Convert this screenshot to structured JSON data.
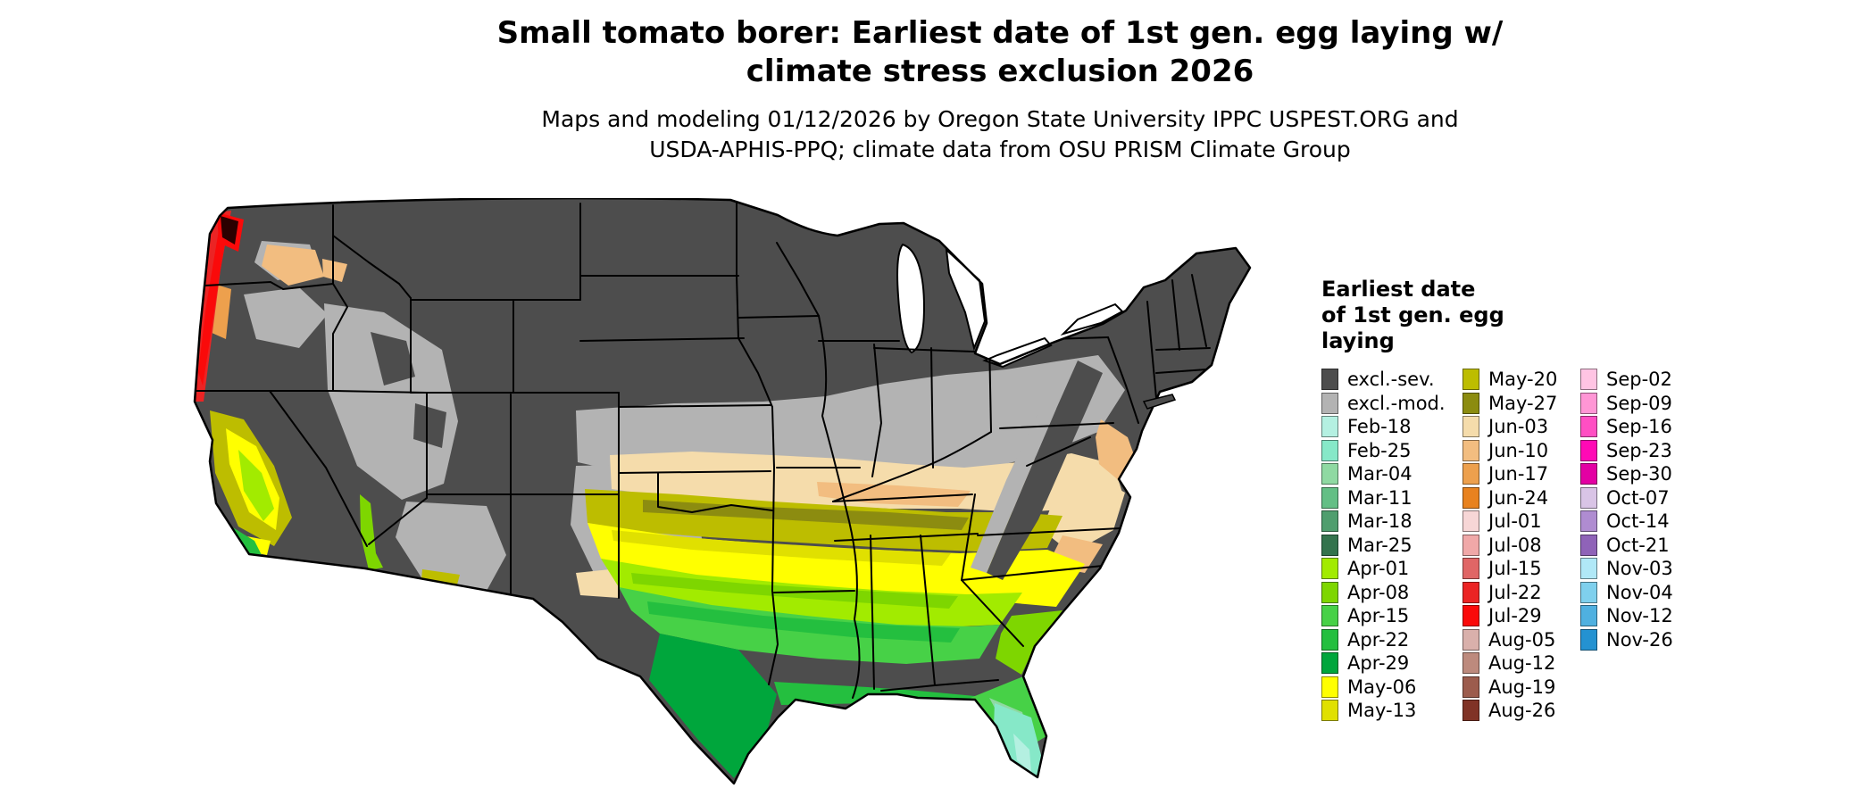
{
  "title": {
    "line1": "Small tomato borer: Earliest date of 1st gen. egg laying w/",
    "line2": "climate stress exclusion 2026"
  },
  "subtitle": {
    "line1": "Maps and modeling 01/12/2026 by Oregon State University IPPC USPEST.ORG and",
    "line2": "USDA-APHIS-PPQ; climate data from OSU PRISM Climate Group"
  },
  "legend": {
    "title_lines": [
      "Earliest date",
      "of 1st gen. egg",
      "laying"
    ],
    "columns": [
      {
        "entries": [
          {
            "label": "excl.-sev.",
            "color": "#4d4d4d"
          },
          {
            "label": "excl.-mod.",
            "color": "#b3b3b3"
          },
          {
            "label": "Feb-18",
            "color": "#b4f0e1"
          },
          {
            "label": "Feb-25",
            "color": "#86e8c8"
          },
          {
            "label": "Mar-04",
            "color": "#8fd9a2"
          },
          {
            "label": "Mar-11",
            "color": "#63bf85"
          },
          {
            "label": "Mar-18",
            "color": "#4f9e6e"
          },
          {
            "label": "Mar-25",
            "color": "#33734d"
          },
          {
            "label": "Apr-01",
            "color": "#a2eb00"
          },
          {
            "label": "Apr-08",
            "color": "#7ed600"
          },
          {
            "label": "Apr-15",
            "color": "#47d147"
          },
          {
            "label": "Apr-22",
            "color": "#24bf3f"
          },
          {
            "label": "Apr-29",
            "color": "#00a63c"
          },
          {
            "label": "May-06",
            "color": "#ffff00"
          },
          {
            "label": "May-13",
            "color": "#e0e000"
          }
        ]
      },
      {
        "entries": [
          {
            "label": "May-20",
            "color": "#bdbd00"
          },
          {
            "label": "May-27",
            "color": "#8c8c10"
          },
          {
            "label": "Jun-03",
            "color": "#f5dcab"
          },
          {
            "label": "Jun-10",
            "color": "#f2bd80"
          },
          {
            "label": "Jun-17",
            "color": "#eda04d"
          },
          {
            "label": "Jun-24",
            "color": "#e8821f"
          },
          {
            "label": "Jul-01",
            "color": "#f7d6d6"
          },
          {
            "label": "Jul-08",
            "color": "#f0a8a8"
          },
          {
            "label": "Jul-15",
            "color": "#e06666"
          },
          {
            "label": "Jul-22",
            "color": "#eb2424"
          },
          {
            "label": "Jul-29",
            "color": "#fa0a0a"
          },
          {
            "label": "Aug-05",
            "color": "#d9b0ab"
          },
          {
            "label": "Aug-12",
            "color": "#bd8a7d"
          },
          {
            "label": "Aug-19",
            "color": "#9c5c4d"
          },
          {
            "label": "Aug-26",
            "color": "#803326"
          }
        ]
      },
      {
        "entries": [
          {
            "label": "Sep-02",
            "color": "#ffc4e3"
          },
          {
            "label": "Sep-09",
            "color": "#ff96d5"
          },
          {
            "label": "Sep-16",
            "color": "#ff4fc3"
          },
          {
            "label": "Sep-23",
            "color": "#ff0ab5"
          },
          {
            "label": "Sep-30",
            "color": "#e300a3"
          },
          {
            "label": "Oct-07",
            "color": "#d9c4e6"
          },
          {
            "label": "Oct-14",
            "color": "#af8cd1"
          },
          {
            "label": "Oct-21",
            "color": "#8f63b8"
          },
          {
            "label": "Nov-03",
            "color": "#b0e8f7"
          },
          {
            "label": "Nov-04",
            "color": "#7fd0ed"
          },
          {
            "label": "Nov-12",
            "color": "#4fb0e0"
          },
          {
            "label": "Nov-26",
            "color": "#2492d1"
          }
        ]
      }
    ]
  },
  "palette": {
    "excl_sev": "#4d4d4d",
    "excl_mod": "#b3b3b3",
    "feb18": "#b4f0e1",
    "feb25": "#86e8c8",
    "mar04": "#8fd9a2",
    "apr01": "#a2eb00",
    "apr08": "#7ed600",
    "apr15": "#47d147",
    "apr22": "#24bf3f",
    "apr29": "#00a63c",
    "may06": "#ffff00",
    "may13": "#e0e000",
    "may20": "#bdbd00",
    "may27": "#8c8c10",
    "jun03": "#f5dcab",
    "jun10": "#f2bd80",
    "jun17": "#eda04d",
    "jul22": "#eb2424",
    "jul29": "#fa0a0a",
    "dark_spot": "#2b0000"
  }
}
